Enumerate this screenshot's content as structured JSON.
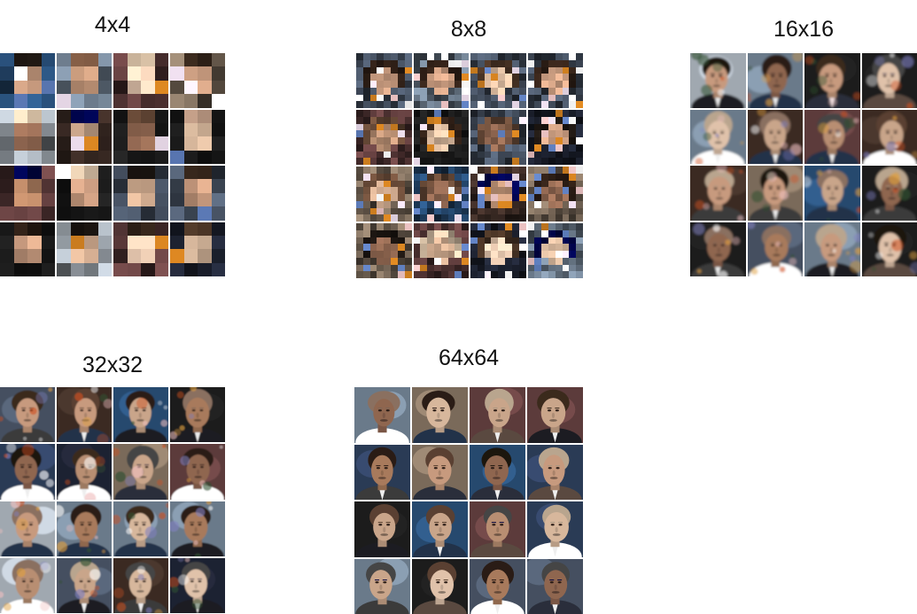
{
  "panels": [
    {
      "id": "p4",
      "title": "4x4"
    },
    {
      "id": "p8",
      "title": "8x8"
    },
    {
      "id": "p16",
      "title": "16x16"
    },
    {
      "id": "p32",
      "title": "32x32"
    },
    {
      "id": "p64",
      "title": "64x64"
    }
  ],
  "labels": {
    "p4": "4x4",
    "p8": "8x8",
    "p16": "16x16",
    "p32": "32x32",
    "p64": "64x64"
  }
}
